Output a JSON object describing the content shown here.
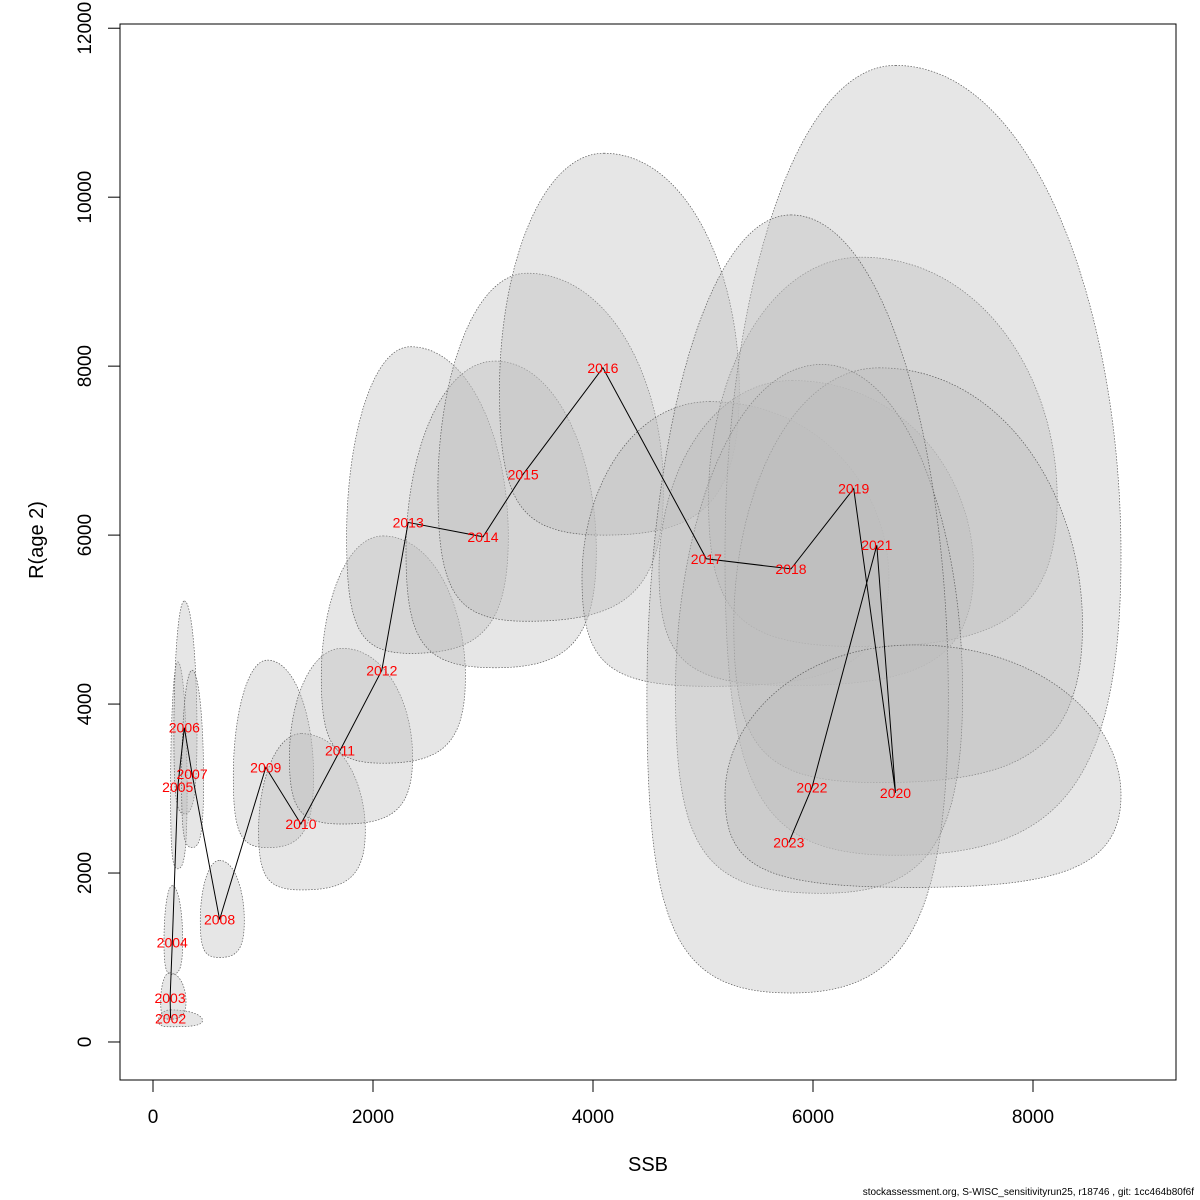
{
  "chart_data": {
    "type": "scatter",
    "title": "",
    "xlabel": "SSB",
    "ylabel": "R(age 2)",
    "xlim": [
      -300,
      9300
    ],
    "ylim": [
      -450,
      12050
    ],
    "xticks": [
      0,
      2000,
      4000,
      6000,
      8000
    ],
    "yticks": [
      0,
      2000,
      4000,
      6000,
      8000,
      10000,
      12000
    ],
    "grid": false,
    "legend": "none",
    "colors": {
      "point_label": "#ff0000",
      "line": "#000000",
      "ellipse_fill": "#bebebe",
      "ellipse_stroke": "#5a5a5a"
    },
    "points": [
      {
        "label": "2002",
        "ssb": 160,
        "r": 280
      },
      {
        "label": "2003",
        "ssb": 155,
        "r": 520
      },
      {
        "label": "2004",
        "ssb": 175,
        "r": 1180
      },
      {
        "label": "2005",
        "ssb": 225,
        "r": 3020
      },
      {
        "label": "2006",
        "ssb": 285,
        "r": 3720
      },
      {
        "label": "2007",
        "ssb": 355,
        "r": 3170
      },
      {
        "label": "2008",
        "ssb": 605,
        "r": 1450
      },
      {
        "label": "2009",
        "ssb": 1025,
        "r": 3250
      },
      {
        "label": "2010",
        "ssb": 1345,
        "r": 2580
      },
      {
        "label": "2011",
        "ssb": 1700,
        "r": 3450
      },
      {
        "label": "2012",
        "ssb": 2080,
        "r": 4400
      },
      {
        "label": "2013",
        "ssb": 2320,
        "r": 6150
      },
      {
        "label": "2014",
        "ssb": 3000,
        "r": 5980
      },
      {
        "label": "2015",
        "ssb": 3365,
        "r": 6720
      },
      {
        "label": "2016",
        "ssb": 4090,
        "r": 7980
      },
      {
        "label": "2017",
        "ssb": 5030,
        "r": 5720
      },
      {
        "label": "2018",
        "ssb": 5800,
        "r": 5600
      },
      {
        "label": "2019",
        "ssb": 6370,
        "r": 6550
      },
      {
        "label": "2020",
        "ssb": 6750,
        "r": 2950
      },
      {
        "label": "2021",
        "ssb": 6580,
        "r": 5880
      },
      {
        "label": "2022",
        "ssb": 5990,
        "r": 3010
      },
      {
        "label": "2023",
        "ssb": 5780,
        "r": 2360
      }
    ],
    "confidence_regions": [
      {
        "year": "2002",
        "ssb_range": [
          50,
          450
        ],
        "r_range": [
          180,
          380
        ],
        "peak_ssb": 160
      },
      {
        "year": "2003",
        "ssb_range": [
          70,
          300
        ],
        "r_range": [
          270,
          820
        ],
        "peak_ssb": 150
      },
      {
        "year": "2004",
        "ssb_range": [
          100,
          270
        ],
        "r_range": [
          800,
          1850
        ],
        "peak_ssb": 175
      },
      {
        "year": "2005",
        "ssb_range": [
          160,
          310
        ],
        "r_range": [
          2050,
          4500
        ],
        "peak_ssb": 225
      },
      {
        "year": "2006",
        "ssb_range": [
          190,
          400
        ],
        "r_range": [
          2700,
          5220
        ],
        "peak_ssb": 285
      },
      {
        "year": "2007",
        "ssb_range": [
          260,
          460
        ],
        "r_range": [
          2300,
          4400
        ],
        "peak_ssb": 355
      },
      {
        "year": "2008",
        "ssb_range": [
          430,
          830
        ],
        "r_range": [
          1000,
          2150
        ],
        "peak_ssb": 605
      },
      {
        "year": "2009",
        "ssb_range": [
          730,
          1460
        ],
        "r_range": [
          2300,
          4520
        ],
        "peak_ssb": 1040
      },
      {
        "year": "2010",
        "ssb_range": [
          960,
          1930
        ],
        "r_range": [
          1800,
          3650
        ],
        "peak_ssb": 1350
      },
      {
        "year": "2011",
        "ssb_range": [
          1240,
          2360
        ],
        "r_range": [
          2580,
          4660
        ],
        "peak_ssb": 1720
      },
      {
        "year": "2012",
        "ssb_range": [
          1530,
          2840
        ],
        "r_range": [
          3300,
          5990
        ],
        "peak_ssb": 2090
      },
      {
        "year": "2013",
        "ssb_range": [
          1760,
          3230
        ],
        "r_range": [
          4600,
          8230
        ],
        "peak_ssb": 2340
      },
      {
        "year": "2014",
        "ssb_range": [
          2300,
          4030
        ],
        "r_range": [
          4430,
          8060
        ],
        "peak_ssb": 3110
      },
      {
        "year": "2015",
        "ssb_range": [
          2590,
          4640
        ],
        "r_range": [
          4980,
          9100
        ],
        "peak_ssb": 3400
      },
      {
        "year": "2016",
        "ssb_range": [
          3150,
          5330
        ],
        "r_range": [
          6000,
          10520
        ],
        "peak_ssb": 4100
      },
      {
        "year": "2017",
        "ssb_range": [
          3900,
          6690
        ],
        "r_range": [
          4210,
          7580
        ],
        "peak_ssb": 5060
      },
      {
        "year": "2018",
        "ssb_range": [
          4600,
          7460
        ],
        "r_range": [
          4220,
          7830
        ],
        "peak_ssb": 5810
      },
      {
        "year": "2019",
        "ssb_range": [
          5050,
          8220
        ],
        "r_range": [
          4680,
          9290
        ],
        "peak_ssb": 6440
      },
      {
        "year": "2020",
        "ssb_range": [
          5200,
          8800
        ],
        "r_range": [
          2210,
          11560
        ],
        "peak_ssb": 6750
      },
      {
        "year": "2021",
        "ssb_range": [
          5280,
          8450
        ],
        "r_range": [
          3070,
          7980
        ],
        "peak_ssb": 6600
      },
      {
        "year": "2022",
        "ssb_range": [
          4750,
          7360
        ],
        "r_range": [
          1760,
          8020
        ],
        "peak_ssb": 6080
      },
      {
        "year": "2023",
        "ssb_range": [
          4490,
          7230
        ],
        "r_range": [
          580,
          9790
        ],
        "peak_ssb": 5800
      },
      {
        "year": "2020",
        "ssb_range": [
          5200,
          8800
        ],
        "r_range": [
          1830,
          4700
        ],
        "peak_ssb": 6920
      }
    ]
  },
  "footer": "stockassessment.org, S-WISC_sensitivityrun25, r18746 , git: 1cc464b80f6f"
}
